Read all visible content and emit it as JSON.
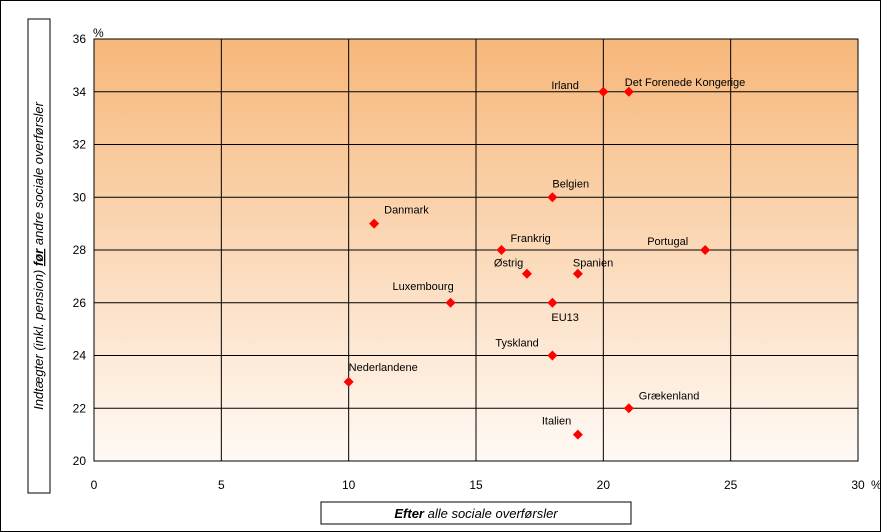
{
  "chart_data": {
    "type": "scatter",
    "title": "",
    "xlabel_bold": "Efter",
    "xlabel_rest": " alle sociale overførsler",
    "ylabel_pre": "Indtægter (inkl. pension) ",
    "ylabel_emph": "før",
    "ylabel_post": " andre sociale overførsler",
    "x_unit": "%",
    "y_unit": "%",
    "xlim": [
      0,
      30
    ],
    "ylim": [
      20,
      36
    ],
    "xticks": [
      0,
      5,
      10,
      15,
      20,
      25,
      30
    ],
    "yticks": [
      20,
      22,
      24,
      26,
      28,
      30,
      32,
      34,
      36
    ],
    "grid": true,
    "marker_color": "#ff0000",
    "gradient_top": "#f7b77a",
    "gradient_bottom": "#fffaf5",
    "points": [
      {
        "label": "Irland",
        "x": 20,
        "y": 34
      },
      {
        "label": "Det Forenede Kongerige",
        "x": 21,
        "y": 34
      },
      {
        "label": "Belgien",
        "x": 18,
        "y": 30
      },
      {
        "label": "Danmark",
        "x": 11,
        "y": 29
      },
      {
        "label": "Frankrig",
        "x": 16,
        "y": 28
      },
      {
        "label": "Portugal",
        "x": 24,
        "y": 28
      },
      {
        "label": "Østrig",
        "x": 17,
        "y": 27.1
      },
      {
        "label": "Spanien",
        "x": 19,
        "y": 27.1
      },
      {
        "label": "Luxembourg",
        "x": 14,
        "y": 26
      },
      {
        "label": "EU13",
        "x": 18,
        "y": 26
      },
      {
        "label": "Tyskland",
        "x": 18,
        "y": 24
      },
      {
        "label": "Nederlandene",
        "x": 10,
        "y": 23
      },
      {
        "label": "Grækenland",
        "x": 21,
        "y": 22
      },
      {
        "label": "Italien",
        "x": 19,
        "y": 21
      }
    ]
  }
}
